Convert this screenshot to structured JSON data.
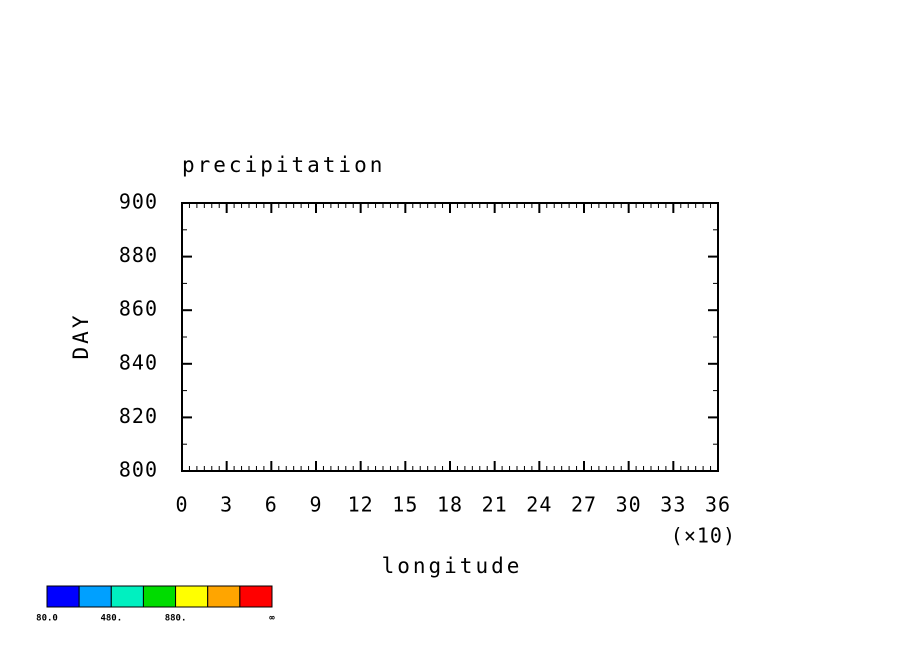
{
  "chart_data": {
    "type": "contour",
    "title": "precipitation",
    "x_label": "longitude",
    "x_scale_label": "(×10)",
    "y_label": "DAY",
    "xlim": [
      0,
      36
    ],
    "xticks": [
      0,
      3,
      6,
      9,
      12,
      15,
      18,
      21,
      24,
      27,
      30,
      33,
      36
    ],
    "ylim": [
      800,
      900
    ],
    "yticks": [
      800,
      820,
      840,
      860,
      880,
      900
    ],
    "colorbar": {
      "colors": [
        "#0000ff",
        "#00a0ff",
        "#00f0c0",
        "#00dc00",
        "#ffff00",
        "#ffa500",
        "#ff0000"
      ],
      "labels": [
        "80.0",
        "480.",
        "880.",
        "∞"
      ]
    }
  }
}
